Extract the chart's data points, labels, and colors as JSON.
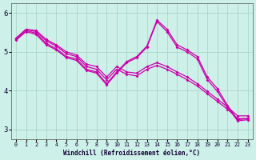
{
  "xlabel": "Windchill (Refroidissement éolien,°C)",
  "bg_color": "#cdf0e8",
  "line_color": "#cc00aa",
  "grid_color": "#aad8c8",
  "xlim_min": -0.5,
  "xlim_max": 23.5,
  "ylim_min": 2.75,
  "ylim_max": 6.25,
  "xticks": [
    0,
    1,
    2,
    3,
    4,
    5,
    6,
    7,
    8,
    9,
    10,
    11,
    12,
    13,
    14,
    15,
    16,
    17,
    18,
    19,
    20,
    21,
    22,
    23
  ],
  "yticks": [
    3,
    4,
    5,
    6
  ],
  "lines": [
    {
      "x": [
        0,
        1,
        2,
        3,
        4,
        5,
        6,
        7,
        8,
        9,
        10,
        11,
        12,
        13,
        14,
        15,
        16,
        17,
        18,
        19,
        20,
        21,
        22,
        23
      ],
      "y": [
        5.35,
        5.58,
        5.52,
        5.28,
        5.15,
        4.95,
        4.88,
        4.62,
        4.55,
        4.28,
        4.55,
        4.42,
        4.38,
        4.55,
        4.65,
        4.55,
        4.42,
        4.28,
        4.12,
        3.92,
        3.72,
        3.52,
        3.28,
        3.28
      ]
    },
    {
      "x": [
        0,
        1,
        2,
        3,
        4,
        5,
        6,
        7,
        8,
        9,
        10,
        11,
        12,
        13,
        14,
        15,
        16,
        17,
        18,
        19,
        20,
        21,
        22,
        23
      ],
      "y": [
        5.35,
        5.58,
        5.55,
        5.32,
        5.18,
        5.0,
        4.92,
        4.68,
        4.62,
        4.35,
        4.62,
        4.48,
        4.45,
        4.62,
        4.72,
        4.62,
        4.48,
        4.35,
        4.18,
        3.98,
        3.78,
        3.58,
        3.35,
        3.35
      ]
    },
    {
      "x": [
        0,
        1,
        2,
        3,
        4,
        5,
        6,
        7,
        8,
        9,
        10,
        11,
        12,
        13,
        14,
        15,
        16,
        17,
        18,
        19,
        20,
        21,
        22,
        23
      ],
      "y": [
        5.32,
        5.55,
        5.48,
        5.22,
        5.08,
        4.88,
        4.82,
        4.55,
        4.48,
        4.18,
        4.48,
        4.75,
        4.88,
        5.15,
        5.82,
        5.58,
        5.18,
        5.05,
        4.88,
        4.35,
        4.05,
        3.62,
        3.25,
        3.28
      ]
    },
    {
      "x": [
        0,
        1,
        2,
        3,
        4,
        5,
        6,
        7,
        8,
        9,
        10,
        11,
        12,
        13,
        14,
        15,
        16,
        17,
        18,
        19,
        20,
        21,
        22,
        23
      ],
      "y": [
        5.3,
        5.52,
        5.45,
        5.18,
        5.05,
        4.85,
        4.78,
        4.52,
        4.45,
        4.15,
        4.45,
        4.72,
        4.85,
        5.12,
        5.78,
        5.52,
        5.12,
        5.0,
        4.82,
        4.28,
        3.98,
        3.58,
        3.22,
        3.25
      ]
    }
  ]
}
